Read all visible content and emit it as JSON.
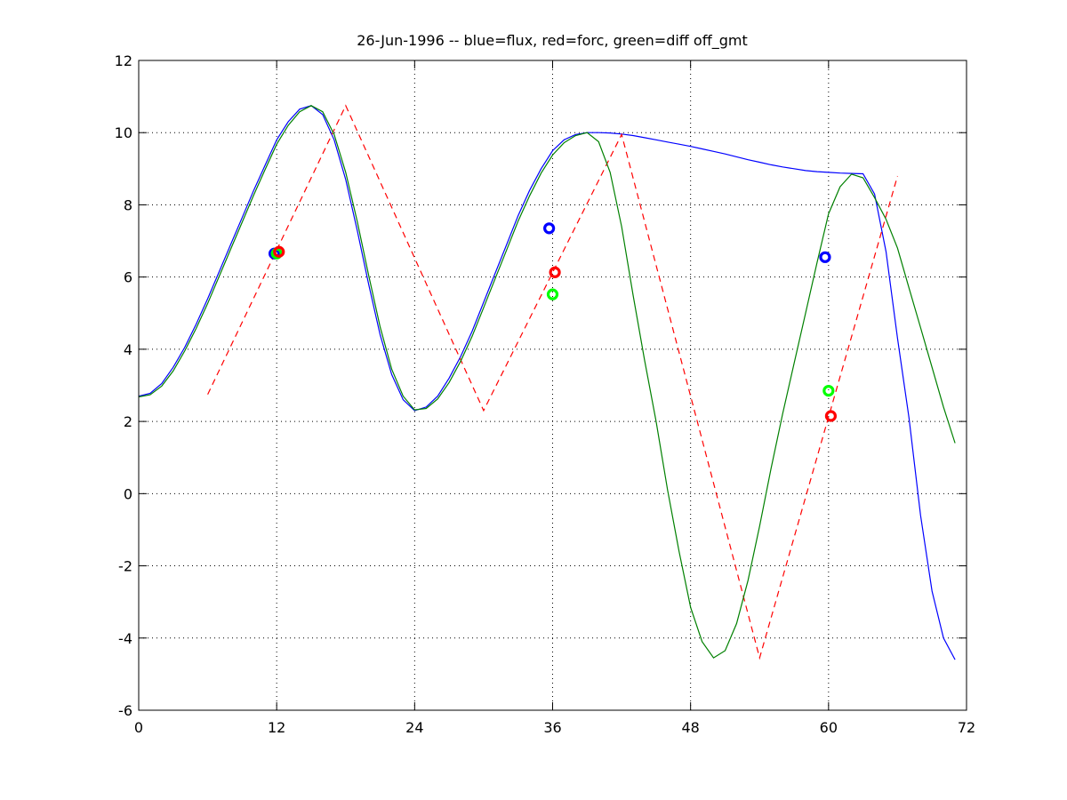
{
  "chart_data": {
    "type": "line",
    "title": "26-Jun-1996 -- blue=flux, red=forc, green=diff off_gmt",
    "xlabel": "",
    "ylabel": "",
    "xlim": [
      0,
      72
    ],
    "ylim": [
      -6,
      12
    ],
    "xticks": [
      0,
      12,
      24,
      36,
      48,
      60,
      72
    ],
    "yticks": [
      -6,
      -4,
      -2,
      0,
      2,
      4,
      6,
      8,
      10,
      12
    ],
    "grid": true,
    "series": [
      {
        "name": "flux",
        "color": "#0000ff",
        "style": "solid",
        "x": [
          0,
          1,
          2,
          3,
          4,
          5,
          6,
          7,
          8,
          9,
          10,
          11,
          12,
          13,
          14,
          15,
          16,
          17,
          18,
          19,
          20,
          21,
          22,
          23,
          24,
          25,
          26,
          27,
          28,
          29,
          30,
          31,
          32,
          33,
          34,
          35,
          36,
          37,
          38,
          39,
          40,
          41,
          42,
          43,
          44,
          45,
          46,
          47,
          48,
          49,
          50,
          51,
          52,
          53,
          54,
          55,
          56,
          57,
          58,
          59,
          60,
          61,
          62,
          63,
          64,
          65,
          66,
          67,
          68,
          69,
          70,
          71
        ],
        "y": [
          2.7,
          2.78,
          3.05,
          3.5,
          4.05,
          4.7,
          5.4,
          6.15,
          6.9,
          7.65,
          8.4,
          9.1,
          9.8,
          10.3,
          10.65,
          10.75,
          10.5,
          9.8,
          8.7,
          7.3,
          5.8,
          4.4,
          3.3,
          2.6,
          2.3,
          2.4,
          2.7,
          3.2,
          3.8,
          4.5,
          5.3,
          6.1,
          6.9,
          7.7,
          8.4,
          9.0,
          9.5,
          9.8,
          9.95,
          10.0,
          10.0,
          9.99,
          9.96,
          9.92,
          9.86,
          9.8,
          9.74,
          9.68,
          9.62,
          9.55,
          9.48,
          9.41,
          9.33,
          9.25,
          9.18,
          9.11,
          9.05,
          9.0,
          8.95,
          8.92,
          8.9,
          8.88,
          8.87,
          8.86,
          8.3,
          6.7,
          4.3,
          2.1,
          -0.6,
          -2.7,
          -4.0,
          -4.6
        ]
      },
      {
        "name": "forc",
        "color": "#ff0000",
        "style": "dashed",
        "x": [
          6,
          18,
          30,
          42,
          54,
          66
        ],
        "y": [
          2.75,
          10.75,
          2.3,
          9.95,
          -4.55,
          8.8
        ]
      },
      {
        "name": "diff off_gmt",
        "color": "#008000",
        "style": "solid",
        "x": [
          0,
          1,
          2,
          3,
          4,
          5,
          6,
          7,
          8,
          9,
          10,
          11,
          12,
          13,
          14,
          15,
          16,
          17,
          18,
          19,
          20,
          21,
          22,
          23,
          24,
          25,
          26,
          27,
          28,
          29,
          30,
          31,
          32,
          33,
          34,
          35,
          36,
          37,
          38,
          39,
          40,
          41,
          42,
          43,
          44,
          45,
          46,
          47,
          48,
          49,
          50,
          51,
          52,
          53,
          54,
          55,
          56,
          57,
          58,
          59,
          60,
          61,
          62,
          63,
          64,
          65,
          66,
          67,
          68,
          69,
          70,
          71
        ],
        "y": [
          2.68,
          2.74,
          2.98,
          3.4,
          3.95,
          4.58,
          5.27,
          6.02,
          6.77,
          7.52,
          8.27,
          8.98,
          9.68,
          10.2,
          10.58,
          10.75,
          10.58,
          9.95,
          8.9,
          7.55,
          6.05,
          4.62,
          3.45,
          2.7,
          2.32,
          2.36,
          2.62,
          3.08,
          3.67,
          4.36,
          5.15,
          5.95,
          6.75,
          7.55,
          8.25,
          8.88,
          9.38,
          9.72,
          9.92,
          10.0,
          9.75,
          8.9,
          7.4,
          5.5,
          3.7,
          2.0,
          0.1,
          -1.6,
          -3.15,
          -4.1,
          -4.55,
          -4.35,
          -3.6,
          -2.4,
          -0.9,
          0.7,
          2.2,
          3.6,
          5.0,
          6.4,
          7.75,
          8.5,
          8.85,
          8.75,
          8.2,
          7.6,
          6.8,
          5.7,
          4.6,
          3.5,
          2.4,
          1.4
        ]
      }
    ],
    "markers": [
      {
        "series": "flux",
        "color": "#0000ff",
        "x": 11.8,
        "y": 6.65
      },
      {
        "series": "diff",
        "color": "#00ff00",
        "x": 12.0,
        "y": 6.65
      },
      {
        "series": "forc",
        "color": "#ff0000",
        "x": 12.2,
        "y": 6.7
      },
      {
        "series": "flux",
        "color": "#0000ff",
        "x": 35.7,
        "y": 7.35
      },
      {
        "series": "forc",
        "color": "#ff0000",
        "x": 36.2,
        "y": 6.13
      },
      {
        "series": "diff",
        "color": "#00ff00",
        "x": 36.0,
        "y": 5.52
      },
      {
        "series": "flux",
        "color": "#0000ff",
        "x": 59.7,
        "y": 6.55
      },
      {
        "series": "diff",
        "color": "#00ff00",
        "x": 60.0,
        "y": 2.85
      },
      {
        "series": "forc",
        "color": "#ff0000",
        "x": 60.2,
        "y": 2.15
      }
    ]
  }
}
